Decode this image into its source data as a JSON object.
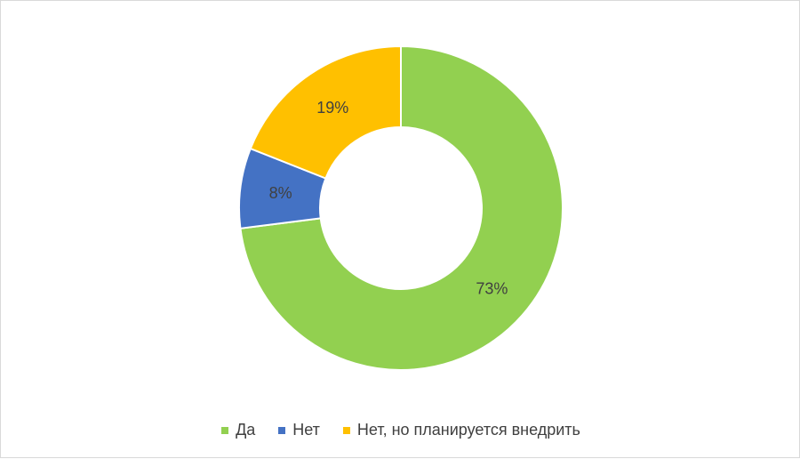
{
  "chart_data": {
    "type": "pie",
    "variant": "donut",
    "title": "",
    "series": [
      {
        "name": "",
        "slices": [
          {
            "label": "Да",
            "value": 73,
            "display": "73%",
            "color": "#92d050"
          },
          {
            "label": "Нет",
            "value": 8,
            "display": "8%",
            "color": "#4472c4"
          },
          {
            "label": "Нет, но планируется внедрить",
            "value": 19,
            "display": "19%",
            "color": "#ffc000"
          }
        ]
      }
    ],
    "legend": {
      "position": "bottom",
      "items": [
        "Да",
        "Нет",
        "Нет, но планируется внедрить"
      ]
    }
  }
}
